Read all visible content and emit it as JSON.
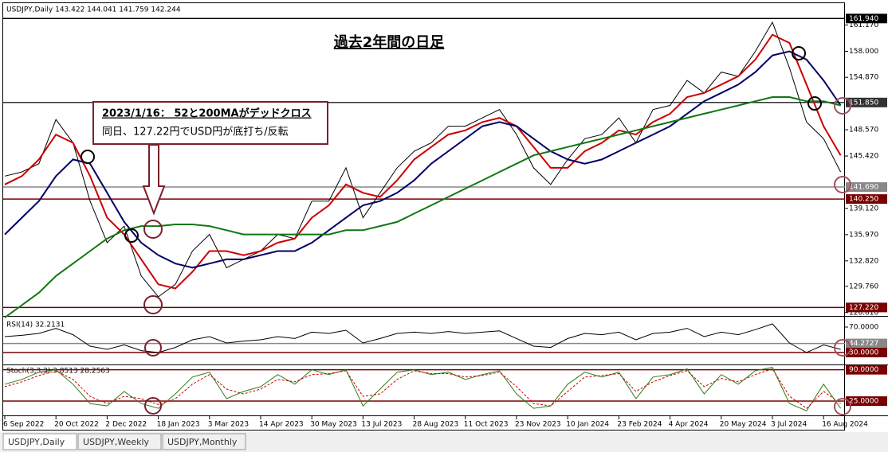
{
  "header": "USDJPY,Daily  143.422 144.041 141.759 142.244",
  "tabs": [
    "USDJPY,Daily",
    "USDJPY,Weekly",
    "USDJPY,Monthly"
  ],
  "chart_data": [
    {
      "type": "line",
      "title": "過去2年間の日足",
      "annotation": [
        "2023/1/16： 52と200MAがデッドクロス",
        "同日、127.22円でUSD円が底打ち/反転"
      ],
      "categories": [
        "6 Sep 2022",
        null,
        null,
        "20 Oct 2022",
        null,
        null,
        "2 Dec 2022",
        null,
        null,
        "18 Jan 2023",
        null,
        null,
        "3 Mar 2023",
        null,
        null,
        "14 Apr 2023",
        null,
        null,
        "30 May 2023",
        null,
        null,
        "13 Jul 2023",
        null,
        null,
        "28 Aug 2023",
        null,
        null,
        "11 Oct 2023",
        null,
        null,
        "23 Nov 2023",
        null,
        null,
        "10 Jan 2024",
        null,
        null,
        "23 Feb 2024",
        null,
        null,
        "4 Apr 2024",
        null,
        null,
        "20 May 2024",
        null,
        null,
        "3 Jul 2024",
        null,
        null,
        "16 Aug 2024",
        null
      ],
      "series": [
        {
          "color": "#000000",
          "width": 1,
          "values": [
            143,
            143.5,
            144.5,
            149.8,
            147,
            140,
            135,
            137,
            131,
            128.5,
            130,
            134,
            136,
            132,
            133,
            134,
            136,
            135.5,
            140,
            140,
            144,
            138,
            141,
            144,
            146,
            147,
            149,
            149,
            150,
            151,
            148,
            144,
            142,
            145,
            147.5,
            148,
            150,
            147,
            151,
            151.5,
            154.5,
            153,
            155.5,
            155,
            158,
            161.5,
            156,
            149.5,
            147.5,
            143.5
          ]
        },
        {
          "color": "#cc0000",
          "width": 2,
          "values": [
            142,
            143,
            145,
            148,
            147,
            143,
            138,
            136,
            133,
            130,
            129.5,
            131.5,
            134,
            134,
            133.5,
            134,
            135,
            135.5,
            138,
            139.5,
            142,
            141,
            140.5,
            142.5,
            145,
            146.5,
            148,
            148.5,
            149.5,
            150,
            149,
            146.5,
            144,
            144,
            146,
            147,
            148.5,
            148,
            149.5,
            150.5,
            152.5,
            153,
            154,
            155,
            157,
            160,
            159,
            154,
            149,
            145.5
          ]
        },
        {
          "color": "#000066",
          "width": 2,
          "values": [
            136,
            138,
            140,
            143,
            145,
            144.5,
            141,
            137.5,
            135,
            133.5,
            132.5,
            132,
            132.5,
            133,
            133,
            133.5,
            134,
            134,
            135,
            136.5,
            138,
            139.5,
            140,
            141,
            142.5,
            144.5,
            146,
            147.5,
            149,
            149.5,
            149,
            147.5,
            146,
            145,
            144.5,
            145,
            146,
            147,
            148,
            149,
            150.5,
            152,
            153,
            154,
            155.5,
            157.5,
            158,
            157,
            154.5,
            151.5
          ]
        },
        {
          "color": "#117711",
          "width": 2,
          "values": [
            126,
            127.5,
            129,
            131,
            132.5,
            134,
            135.5,
            136.5,
            137,
            137,
            137.2,
            137.2,
            137,
            136.5,
            136,
            136,
            136,
            136,
            136,
            136,
            136.5,
            136.5,
            137,
            137.5,
            138.5,
            139.5,
            140.5,
            141.5,
            142.5,
            143.5,
            144.5,
            145.5,
            146,
            146.5,
            147,
            147.5,
            148,
            148.5,
            149,
            149.5,
            150,
            150.5,
            151,
            151.5,
            152,
            152.5,
            152.5,
            152,
            152,
            151.5
          ]
        }
      ],
      "ylim": [
        126.3,
        163.4
      ],
      "yticks": [
        {
          "value": 161.17,
          "label": "161.170"
        },
        {
          "value": 158,
          "label": "158.000"
        },
        {
          "value": 154.87,
          "label": "154.870"
        },
        {
          "value": 148.57,
          "label": "148.570"
        },
        {
          "value": 145.42,
          "label": "145.420"
        },
        {
          "value": 139.12,
          "label": "139.120"
        },
        {
          "value": 135.97,
          "label": "135.970"
        },
        {
          "value": 132.82,
          "label": "132.820"
        },
        {
          "value": 129.76,
          "label": "129.760"
        },
        {
          "value": 126.61,
          "label": "126.610"
        }
      ],
      "levels": [
        {
          "value": 161.94,
          "label": "161.940",
          "color": "#000000"
        },
        {
          "value": 151.85,
          "label": "151.850",
          "color": "#333333"
        },
        {
          "value": 141.69,
          "label": "141.690",
          "color": "#888888"
        },
        {
          "value": 140.25,
          "label": "140.250",
          "color": "#7a0000"
        },
        {
          "value": 127.22,
          "label": "127.220",
          "color": "#7a0000"
        }
      ]
    },
    {
      "type": "line",
      "title": "RSI(14) 32.2131",
      "series": [
        {
          "color": "#000000",
          "width": 1,
          "values": [
            55,
            57,
            60,
            68,
            58,
            40,
            35,
            42,
            33,
            30,
            38,
            50,
            55,
            45,
            48,
            50,
            55,
            52,
            62,
            60,
            65,
            45,
            52,
            60,
            62,
            60,
            63,
            60,
            62,
            64,
            52,
            40,
            38,
            52,
            60,
            58,
            62,
            50,
            60,
            62,
            68,
            55,
            62,
            58,
            66,
            75,
            45,
            30,
            42,
            35
          ]
        }
      ],
      "ylim": [
        12.5,
        85
      ],
      "yticks": [
        {
          "value": 70,
          "label": "70.0000"
        }
      ],
      "levels": [
        {
          "value": 44.2727,
          "label": "44.2727",
          "color": "#888888"
        },
        {
          "value": 30,
          "label": "30.0000",
          "color": "#7a0000"
        }
      ]
    },
    {
      "type": "line",
      "title": "Stoch(3,3,3) 3.8513 28.2563",
      "series": [
        {
          "color": "#2e7d1a",
          "width": 1,
          "values": [
            60,
            70,
            85,
            90,
            60,
            20,
            15,
            45,
            20,
            10,
            40,
            75,
            85,
            30,
            45,
            55,
            80,
            60,
            90,
            80,
            90,
            15,
            50,
            85,
            90,
            80,
            85,
            70,
            80,
            88,
            40,
            10,
            15,
            60,
            85,
            75,
            85,
            30,
            75,
            80,
            92,
            40,
            80,
            60,
            88,
            95,
            20,
            5,
            60,
            10
          ]
        },
        {
          "color": "#cc0000",
          "width": 1,
          "dash": true,
          "values": [
            55,
            65,
            78,
            88,
            70,
            35,
            20,
            35,
            30,
            18,
            30,
            60,
            80,
            50,
            40,
            50,
            70,
            65,
            80,
            82,
            88,
            35,
            40,
            70,
            88,
            82,
            82,
            75,
            78,
            85,
            55,
            20,
            15,
            45,
            75,
            78,
            82,
            45,
            65,
            78,
            88,
            55,
            72,
            65,
            80,
            92,
            35,
            10,
            45,
            20
          ]
        }
      ],
      "ylim": [
        -3,
        97.7
      ],
      "yticks": [],
      "levels": [
        {
          "value": 90,
          "label": "90.0000",
          "color": "#7a0000"
        },
        {
          "value": 25,
          "label": "25.0000",
          "color": "#7a0000"
        }
      ]
    }
  ]
}
